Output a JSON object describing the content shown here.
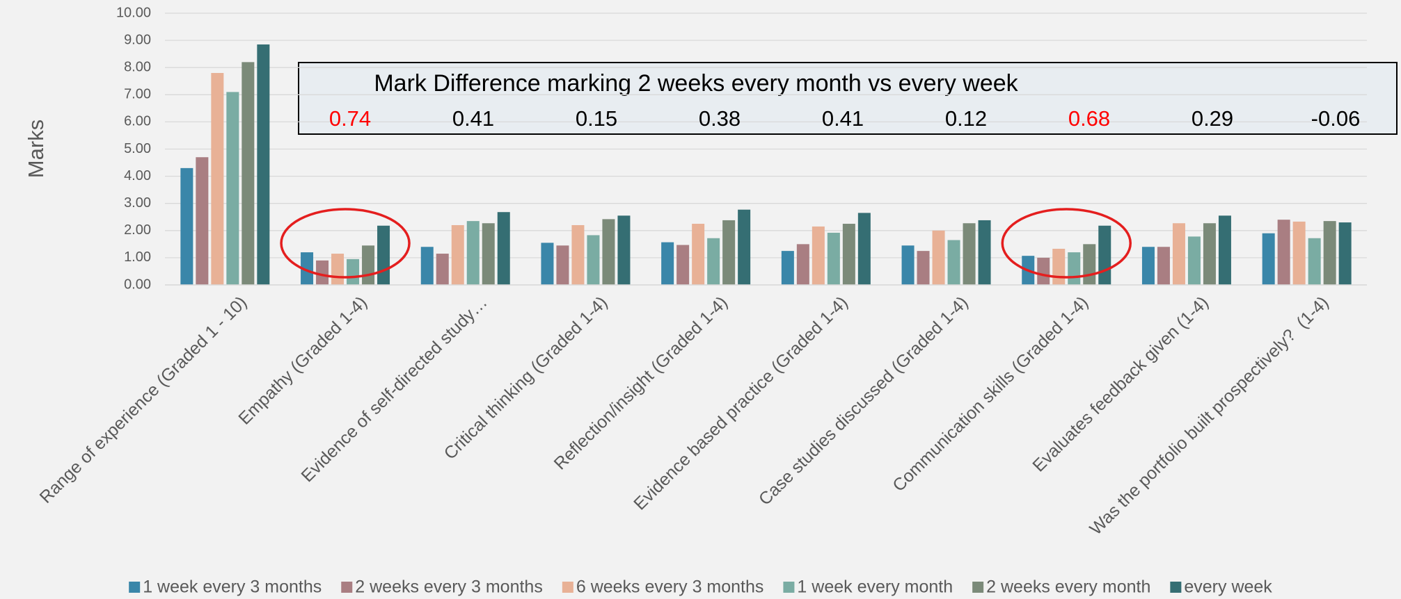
{
  "chart_data": {
    "type": "bar",
    "y_label": "Marks",
    "categories": [
      "Range of experience (Graded 1 - 10)",
      "Empathy (Graded 1-4)",
      "Evidence of self-directed study…",
      "Critical thinking (Graded 1-4)",
      "Reflection/insight (Graded 1-4)",
      "Evidence based practice (Graded 1-4)",
      "Case studies discussed (Graded 1-4)",
      "Communication skills (Graded 1-4)",
      "Evaluates feedback given (1-4)",
      "Was the portfolio built prospectively?  (1-4)"
    ],
    "series": [
      {
        "name": "1 week every 3 months",
        "color": "#3a86a9",
        "values": [
          4.3,
          1.2,
          1.4,
          1.55,
          1.57,
          1.25,
          1.45,
          1.07,
          1.4,
          1.9
        ]
      },
      {
        "name": "2 weeks every 3 months",
        "color": "#a97e82",
        "values": [
          4.7,
          0.9,
          1.15,
          1.45,
          1.47,
          1.5,
          1.25,
          1.0,
          1.4,
          2.4
        ]
      },
      {
        "name": "6 weeks every 3 months",
        "color": "#e8b196",
        "values": [
          7.8,
          1.15,
          2.2,
          2.2,
          2.25,
          2.15,
          2.0,
          1.33,
          2.27,
          2.33
        ]
      },
      {
        "name": "1 week every month",
        "color": "#7aaca3",
        "values": [
          7.1,
          0.95,
          2.35,
          1.83,
          1.72,
          1.92,
          1.65,
          1.2,
          1.78,
          1.72
        ]
      },
      {
        "name": "2 weeks every month",
        "color": "#7b8a79",
        "values": [
          8.2,
          1.45,
          2.27,
          2.42,
          2.38,
          2.25,
          2.27,
          1.5,
          2.27,
          2.35
        ]
      },
      {
        "name": "every week",
        "color": "#356e73",
        "values": [
          8.85,
          2.18,
          2.68,
          2.55,
          2.77,
          2.65,
          2.38,
          2.18,
          2.55,
          2.3
        ]
      }
    ],
    "ylim": [
      0,
      10
    ],
    "yticks": [
      {
        "value": 0,
        "label": "0.00"
      },
      {
        "value": 1,
        "label": "1.00"
      },
      {
        "value": 2,
        "label": "2.00"
      },
      {
        "value": 3,
        "label": "3.00"
      },
      {
        "value": 4,
        "label": "4.00"
      },
      {
        "value": 5,
        "label": "5.00"
      },
      {
        "value": 6,
        "label": "6.00"
      },
      {
        "value": 7,
        "label": "7.00"
      },
      {
        "value": 8,
        "label": "8.00"
      },
      {
        "value": 9,
        "label": "9.00"
      },
      {
        "value": 10,
        "label": "10.00"
      }
    ],
    "grid": true,
    "legend": "bottom",
    "annotation": {
      "title": "Mark Difference marking 2 weeks every month vs every week",
      "values": [
        0.74,
        0.41,
        0.15,
        0.38,
        0.41,
        0.12,
        0.68,
        0.29,
        -0.06
      ],
      "colors": [
        "#ff0000",
        "#000000",
        "#000000",
        "#000000",
        "#000000",
        "#000000",
        "#ff0000",
        "#000000",
        "#000000"
      ]
    }
  }
}
